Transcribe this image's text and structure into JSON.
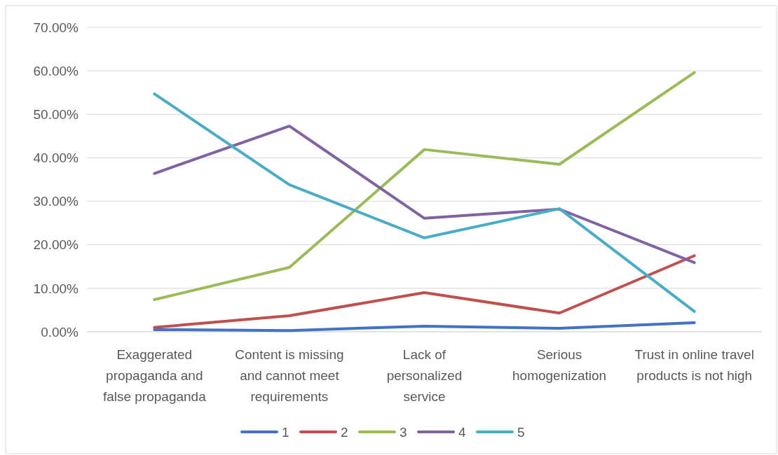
{
  "chart_data": {
    "type": "line",
    "categories": [
      "Exaggerated propaganda and false propaganda",
      "Content is missing and cannot meet requirements",
      "Lack of personalized service",
      "Serious homogenization",
      "Trust in online travel products is not high"
    ],
    "series": [
      {
        "name": "1",
        "color": "#4472c4",
        "values": [
          0.5,
          0.3,
          1.3,
          0.8,
          2.1
        ]
      },
      {
        "name": "2",
        "color": "#c0504d",
        "values": [
          1.0,
          3.7,
          9.0,
          4.3,
          17.5
        ]
      },
      {
        "name": "3",
        "color": "#9bbb59",
        "values": [
          7.4,
          14.8,
          41.9,
          38.5,
          59.6
        ]
      },
      {
        "name": "4",
        "color": "#8064a2",
        "values": [
          36.4,
          47.3,
          26.1,
          28.2,
          15.9
        ]
      },
      {
        "name": "5",
        "color": "#4bacc6",
        "values": [
          54.7,
          33.8,
          21.6,
          28.3,
          4.7
        ]
      }
    ],
    "ylim": [
      0,
      70
    ],
    "yticks": [
      {
        "value": 0,
        "label": "0.00%"
      },
      {
        "value": 10,
        "label": "10.00%"
      },
      {
        "value": 20,
        "label": "20.00%"
      },
      {
        "value": 30,
        "label": "30.00%"
      },
      {
        "value": 40,
        "label": "40.00%"
      },
      {
        "value": 50,
        "label": "50.00%"
      },
      {
        "value": 60,
        "label": "60.00%"
      },
      {
        "value": 70,
        "label": "70.00%"
      }
    ],
    "grid": "y",
    "legend": "bottom",
    "marker": "none",
    "line_style": "solid"
  }
}
